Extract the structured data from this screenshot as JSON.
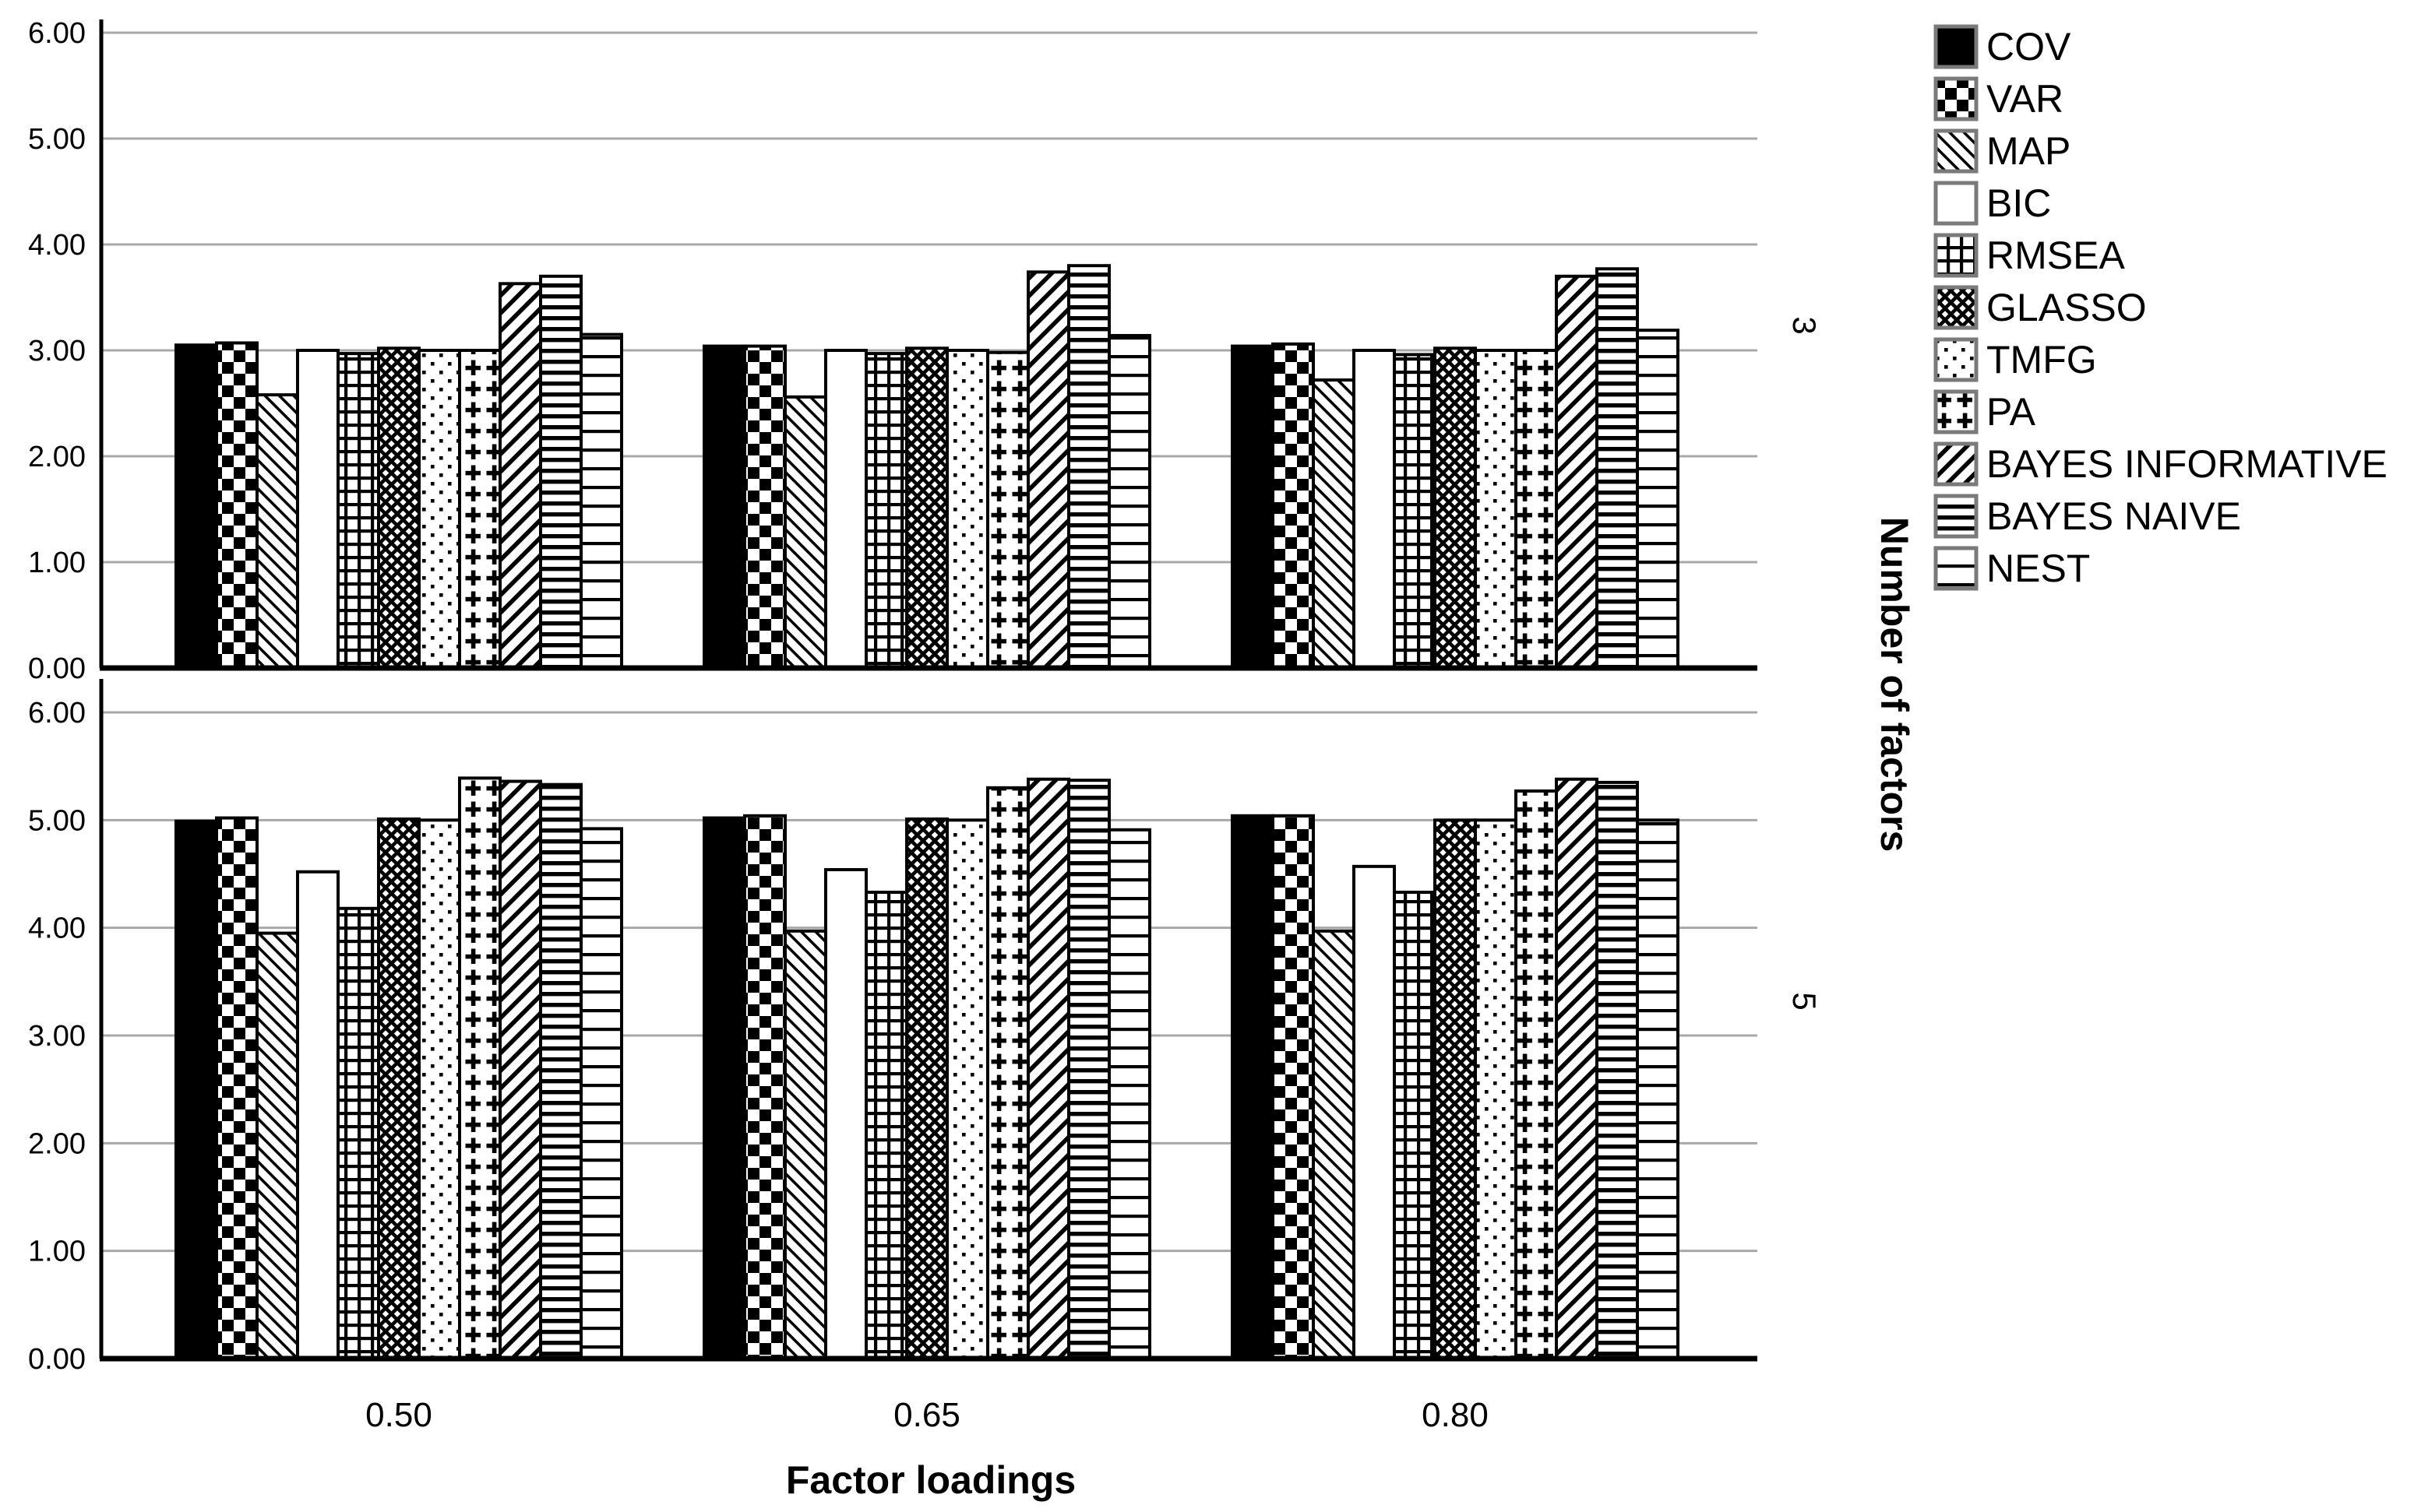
{
  "chart_data": {
    "type": "bar",
    "title": "",
    "xlabel": "Factor loadings",
    "ylabel_right": "Number of factors",
    "categories": [
      "0.50",
      "0.65",
      "0.80"
    ],
    "ylim": [
      0,
      6
    ],
    "yticks": [
      "0.00",
      "1.00",
      "2.00",
      "3.00",
      "4.00",
      "5.00",
      "6.00"
    ],
    "grid": "horizontal-gray",
    "legend_position": "right",
    "colors": {
      "bar_fill": "#000000",
      "bar_background": "#ffffff",
      "bar_outline": "#000000",
      "gridline": "#a8a8a8",
      "axis": "#000000",
      "legend_swatch_border": "#7a7a7a"
    },
    "legend": [
      {
        "label": "COV",
        "pattern": "cov"
      },
      {
        "label": "VAR",
        "pattern": "var"
      },
      {
        "label": "MAP",
        "pattern": "map"
      },
      {
        "label": "BIC",
        "pattern": "bic"
      },
      {
        "label": "RMSEA",
        "pattern": "rmsea"
      },
      {
        "label": "GLASSO",
        "pattern": "glasso"
      },
      {
        "label": "TMFG",
        "pattern": "tmfg"
      },
      {
        "label": "PA",
        "pattern": "pa"
      },
      {
        "label": "BAYES INFORMATIVE",
        "pattern": "bayesinf"
      },
      {
        "label": "BAYES NAIVE",
        "pattern": "bayesnaive"
      },
      {
        "label": "NEST",
        "pattern": "nest"
      }
    ],
    "panels": [
      {
        "label": "3",
        "series": [
          {
            "name": "COV",
            "values": [
              3.05,
              3.04,
              3.04
            ]
          },
          {
            "name": "VAR",
            "values": [
              3.07,
              3.04,
              3.06
            ]
          },
          {
            "name": "MAP",
            "values": [
              2.58,
              2.56,
              2.72
            ]
          },
          {
            "name": "BIC",
            "values": [
              3.0,
              3.0,
              3.0
            ]
          },
          {
            "name": "RMSEA",
            "values": [
              2.97,
              2.97,
              2.96
            ]
          },
          {
            "name": "GLASSO",
            "values": [
              3.02,
              3.02,
              3.02
            ]
          },
          {
            "name": "TMFG",
            "values": [
              3.0,
              3.0,
              3.0
            ]
          },
          {
            "name": "PA",
            "values": [
              3.0,
              2.98,
              3.0
            ]
          },
          {
            "name": "BAYES INFORMATIVE",
            "values": [
              3.63,
              3.74,
              3.7
            ]
          },
          {
            "name": "BAYES NAIVE",
            "values": [
              3.7,
              3.8,
              3.77
            ]
          },
          {
            "name": "NEST",
            "values": [
              3.15,
              3.14,
              3.19
            ]
          }
        ]
      },
      {
        "label": "5",
        "series": [
          {
            "name": "COV",
            "values": [
              4.99,
              5.02,
              5.04
            ]
          },
          {
            "name": "VAR",
            "values": [
              5.02,
              5.04,
              5.04
            ]
          },
          {
            "name": "MAP",
            "values": [
              3.95,
              3.97,
              3.97
            ]
          },
          {
            "name": "BIC",
            "values": [
              4.52,
              4.54,
              4.57
            ]
          },
          {
            "name": "RMSEA",
            "values": [
              4.18,
              4.33,
              4.33
            ]
          },
          {
            "name": "GLASSO",
            "values": [
              5.01,
              5.01,
              5.0
            ]
          },
          {
            "name": "TMFG",
            "values": [
              5.0,
              5.0,
              5.0
            ]
          },
          {
            "name": "PA",
            "values": [
              5.39,
              5.3,
              5.27
            ]
          },
          {
            "name": "BAYES INFORMATIVE",
            "values": [
              5.36,
              5.38,
              5.38
            ]
          },
          {
            "name": "BAYES NAIVE",
            "values": [
              5.33,
              5.37,
              5.35
            ]
          },
          {
            "name": "NEST",
            "values": [
              4.92,
              4.91,
              5.0
            ]
          }
        ]
      }
    ]
  }
}
